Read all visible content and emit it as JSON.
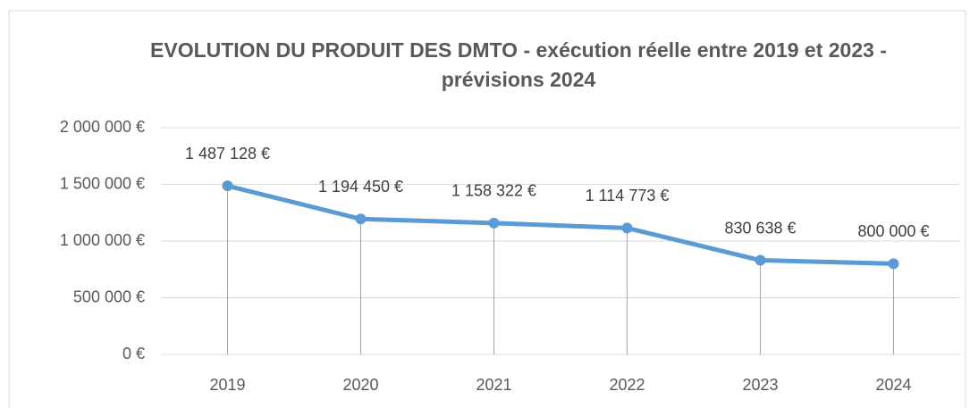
{
  "chart_data": {
    "type": "line",
    "title": "EVOLUTION DU PRODUIT DES DMTO - exécution réelle entre 2019 et 2023 - prévisions 2024",
    "categories": [
      "2019",
      "2020",
      "2021",
      "2022",
      "2023",
      "2024"
    ],
    "values": [
      1487128,
      1194450,
      1158322,
      1114773,
      830638,
      800000
    ],
    "value_labels": [
      "1 487 128 €",
      "1 194 450 €",
      "1 158 322 €",
      "1 114 773 €",
      "830 638 €",
      "800 000 €"
    ],
    "color": "#5b9bd5",
    "ylim": [
      0,
      2000000
    ],
    "yticks": [
      {
        "value": 0,
        "label": "0 €"
      },
      {
        "value": 500000,
        "label": "500 000 €"
      },
      {
        "value": 1000000,
        "label": "1 000 000 €"
      },
      {
        "value": 1500000,
        "label": "1 500 000 €"
      },
      {
        "value": 2000000,
        "label": "2 000 000 €"
      }
    ],
    "grid": true,
    "drop_lines": true
  }
}
